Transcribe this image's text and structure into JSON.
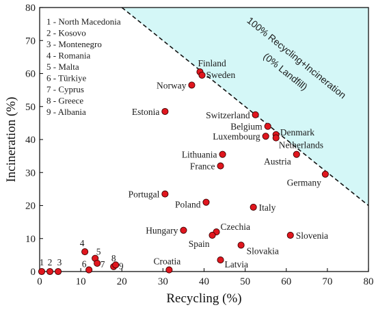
{
  "chart_data": {
    "type": "scatter",
    "xlabel": "Recycling (%)",
    "ylabel": "Incineration (%)",
    "xlim": [
      0,
      80
    ],
    "ylim": [
      0,
      80
    ],
    "x_ticks": [
      "0",
      "10",
      "20",
      "30",
      "40",
      "50",
      "60",
      "70",
      "80"
    ],
    "y_ticks": [
      "0",
      "10",
      "20",
      "30",
      "40",
      "50",
      "60",
      "70",
      "80"
    ],
    "grid": false,
    "marker_color": "#e0161e",
    "region_fill": "#d4f7f7",
    "region_label_line1": "100% Recycling+Incineration",
    "region_label_line2": "(0% Landfill)",
    "legend": [
      "1 - North Macedonia",
      "2 - Kosovo",
      "3 - Montenegro",
      "4 - Romania",
      "5 - Malta",
      "6 - Türkiye",
      "7 - Cyprus",
      "8 - Greece",
      "9 - Albania"
    ],
    "points": [
      {
        "label": "Finland",
        "x": 39,
        "y": 60.5
      },
      {
        "label": "Sweden",
        "x": 39.5,
        "y": 59.5
      },
      {
        "label": "Norway",
        "x": 37,
        "y": 56.5
      },
      {
        "label": "Estonia",
        "x": 30.5,
        "y": 48.5
      },
      {
        "label": "Switzerland",
        "x": 52.5,
        "y": 47.5
      },
      {
        "label": "Belgium",
        "x": 55.5,
        "y": 44
      },
      {
        "label": "Denmark",
        "x": 57.5,
        "y": 41.5
      },
      {
        "label": "Luxembourg",
        "x": 55,
        "y": 41
      },
      {
        "label": "Netherlands",
        "x": 57.5,
        "y": 40.5
      },
      {
        "label": "Lithuania",
        "x": 44.5,
        "y": 35.5
      },
      {
        "label": "Austria",
        "x": 62.5,
        "y": 35.5
      },
      {
        "label": "France",
        "x": 44,
        "y": 32
      },
      {
        "label": "Germany",
        "x": 69.5,
        "y": 29.5
      },
      {
        "label": "Portugal",
        "x": 30.5,
        "y": 23.5
      },
      {
        "label": "Poland",
        "x": 40.5,
        "y": 21
      },
      {
        "label": "Italy",
        "x": 52,
        "y": 19.5
      },
      {
        "label": "Hungary",
        "x": 35,
        "y": 12.5
      },
      {
        "label": "Czechia",
        "x": 43,
        "y": 12
      },
      {
        "label": "Spain",
        "x": 42,
        "y": 11
      },
      {
        "label": "Slovenia",
        "x": 61,
        "y": 11
      },
      {
        "label": "Slovakia",
        "x": 49,
        "y": 8
      },
      {
        "label": "Latvia",
        "x": 44,
        "y": 3.5
      },
      {
        "label": "Croatia",
        "x": 31.5,
        "y": 0.5
      },
      {
        "label": "1",
        "x": 0.5,
        "y": 0
      },
      {
        "label": "2",
        "x": 2.5,
        "y": 0
      },
      {
        "label": "3",
        "x": 4.5,
        "y": 0
      },
      {
        "label": "4",
        "x": 11,
        "y": 6
      },
      {
        "label": "5",
        "x": 13.5,
        "y": 4
      },
      {
        "label": "6",
        "x": 12,
        "y": 0.5
      },
      {
        "label": "7",
        "x": 14,
        "y": 2.5
      },
      {
        "label": "8",
        "x": 18,
        "y": 1.5
      },
      {
        "label": "9",
        "x": 18.5,
        "y": 2
      }
    ]
  }
}
